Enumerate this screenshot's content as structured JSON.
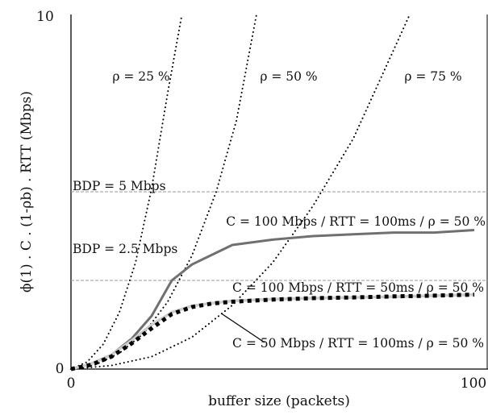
{
  "chart_data": {
    "type": "line",
    "xlabel": "buffer size (packets)",
    "ylabel": "ϕ(1) . C . (1-ρb) . RTT (Mbps)",
    "xlim": [
      0,
      100
    ],
    "ylim": [
      0,
      10
    ],
    "x_ticks": [
      "0",
      "100"
    ],
    "y_ticks": [
      "0",
      "10"
    ],
    "grid": false,
    "reference_lines": [
      {
        "label": "BDP = 5 Mbps",
        "y": 5,
        "color": "#999999",
        "style": "dashed"
      },
      {
        "label": "BDP = 2.5 Mbps",
        "y": 2.5,
        "color": "#999999",
        "style": "dashed"
      }
    ],
    "curves_dotted": [
      {
        "label": "ρ = 25 %",
        "x": [
          0,
          4,
          8,
          12,
          16,
          20,
          24,
          27.5
        ],
        "y": [
          0,
          0.2,
          0.7,
          1.6,
          3.0,
          5.1,
          7.8,
          10
        ]
      },
      {
        "label": "ρ = 50 %",
        "x": [
          0,
          6,
          12,
          18,
          24,
          30,
          36,
          41,
          46
        ],
        "y": [
          0,
          0.12,
          0.45,
          1.0,
          1.9,
          3.2,
          5.0,
          7.0,
          10
        ]
      },
      {
        "label": "ρ = 75 %",
        "x": [
          0,
          10,
          20,
          30,
          40,
          50,
          60,
          70,
          80,
          84
        ],
        "y": [
          0,
          0.1,
          0.35,
          0.9,
          1.8,
          3.0,
          4.6,
          6.5,
          9.0,
          10
        ]
      }
    ],
    "series": [
      {
        "name": "C = 100 Mbps / RTT = 100ms / ρ = 50 %",
        "color": "#707070",
        "style": "solid",
        "x": [
          0,
          5,
          10,
          15,
          20,
          25,
          30,
          40,
          50,
          60,
          70,
          80,
          90,
          100
        ],
        "y": [
          0,
          0.15,
          0.4,
          0.85,
          1.5,
          2.5,
          2.95,
          3.5,
          3.65,
          3.75,
          3.8,
          3.85,
          3.85,
          3.92
        ]
      },
      {
        "name": "C = 100 Mbps / RTT = 50ms / ρ = 50 %",
        "color": "#cccccc",
        "style": "solid",
        "x": [
          0,
          5,
          10,
          15,
          20,
          25,
          30,
          35,
          40,
          50,
          60,
          70,
          80,
          90,
          100
        ],
        "y": [
          0,
          0.15,
          0.4,
          0.8,
          1.25,
          1.6,
          1.78,
          1.86,
          1.92,
          1.97,
          2.0,
          2.02,
          2.04,
          2.07,
          2.1
        ]
      },
      {
        "name": "C = 50 Mbps / RTT = 100ms / ρ = 50 %",
        "color": "#000000",
        "style": "dotted-thick",
        "x": [
          0,
          5,
          10,
          15,
          20,
          25,
          30,
          35,
          40,
          50,
          60,
          70,
          80,
          90,
          100
        ],
        "y": [
          0,
          0.12,
          0.35,
          0.72,
          1.15,
          1.55,
          1.75,
          1.85,
          1.9,
          1.96,
          2.0,
          2.02,
          2.05,
          2.07,
          2.1
        ]
      }
    ]
  }
}
